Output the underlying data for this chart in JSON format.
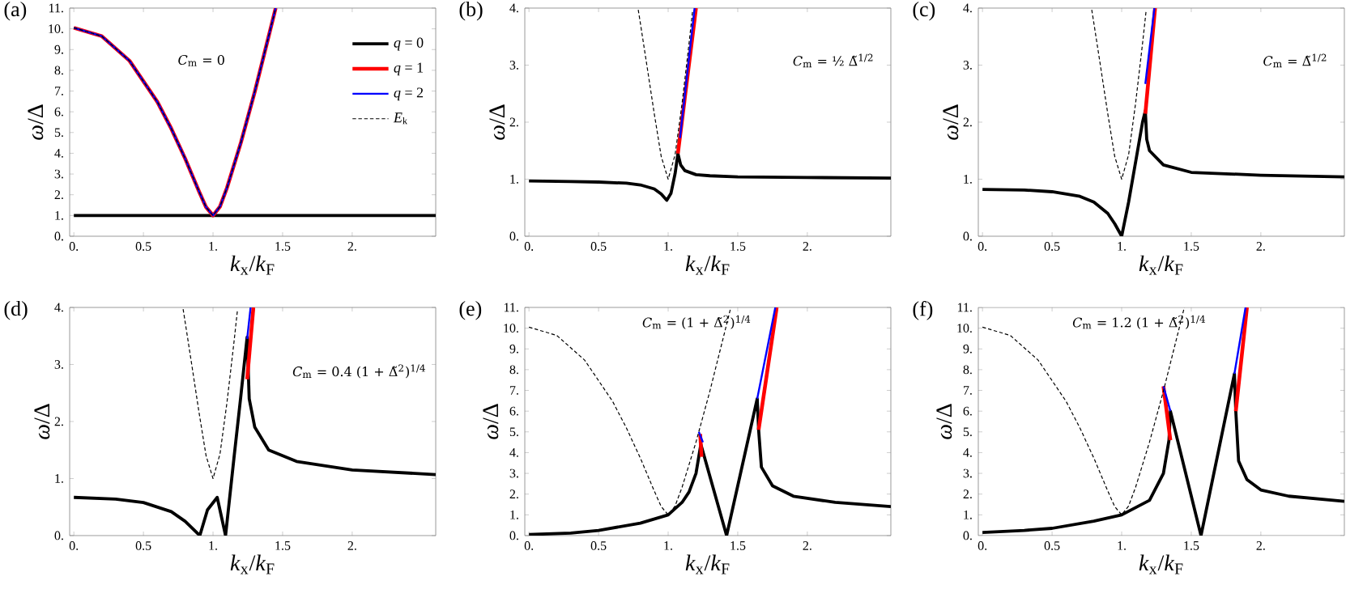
{
  "chart_data": [
    {
      "type": "line",
      "title": "(a)",
      "xlabel": "*k*$_{x}$/*k*$_{F}$",
      "ylabel": "*ω*/Δ",
      "annotations": [
        "*C*$_{m}$ = 0"
      ],
      "legend": "top right",
      "xlim": [
        -0.03,
        2.6
      ],
      "ylim": [
        0,
        11
      ],
      "xticks": [
        {
          "value": 0,
          "label": "0."
        },
        {
          "value": 0.5,
          "label": "0.5"
        },
        {
          "value": 1,
          "label": "1."
        },
        {
          "value": 1.5,
          "label": "1.5"
        },
        {
          "value": 2,
          "label": "2."
        }
      ],
      "yticks": [
        {
          "value": 0,
          "label": "0."
        },
        {
          "value": 1,
          "label": "1."
        },
        {
          "value": 2,
          "label": "2."
        },
        {
          "value": 3,
          "label": "3."
        },
        {
          "value": 4,
          "label": "4."
        },
        {
          "value": 5,
          "label": "5."
        },
        {
          "value": 6,
          "label": "6."
        },
        {
          "value": 7,
          "label": "7."
        },
        {
          "value": 8,
          "label": "8."
        },
        {
          "value": 9,
          "label": "9."
        },
        {
          "value": 10,
          "label": "10."
        },
        {
          "value": 11,
          "label": "11."
        }
      ],
      "series": [
        {
          "name": "*q* = 0",
          "color": "#000000",
          "x": [
            0,
            2.6
          ],
          "values": [
            1,
            1
          ]
        },
        {
          "name": "*q* = 1",
          "color": "#ff0000",
          "x": [
            0,
            0.2,
            0.4,
            0.6,
            0.7,
            0.8,
            0.9,
            0.95,
            1.0,
            1.05,
            1.1,
            1.2,
            1.3,
            1.4,
            1.45
          ],
          "values": [
            10.05,
            9.65,
            8.46,
            6.48,
            5.19,
            3.74,
            2.15,
            1.4,
            1.0,
            1.43,
            2.33,
            4.51,
            6.97,
            9.65,
            11.0
          ]
        },
        {
          "name": "*q* = 2",
          "color": "#0000ff",
          "x": [
            0,
            0.2,
            0.4,
            0.6,
            0.7,
            0.8,
            0.9,
            0.95,
            1.0,
            1.05,
            1.1,
            1.2,
            1.3,
            1.4,
            1.45
          ],
          "values": [
            10.05,
            9.65,
            8.46,
            6.48,
            5.19,
            3.74,
            2.15,
            1.4,
            1.0,
            1.43,
            2.33,
            4.51,
            6.97,
            9.65,
            11.0
          ]
        },
        {
          "name": "*E*$_{k}$",
          "color": "#000000",
          "line_style": "dashed",
          "x": [
            0,
            0.2,
            0.4,
            0.6,
            0.7,
            0.8,
            0.9,
            0.95,
            1.0,
            1.05,
            1.1,
            1.2,
            1.3,
            1.4,
            1.45
          ],
          "values": [
            10.05,
            9.65,
            8.46,
            6.48,
            5.19,
            3.74,
            2.15,
            1.4,
            1.0,
            1.43,
            2.33,
            4.51,
            6.97,
            9.65,
            11.0
          ]
        }
      ]
    },
    {
      "type": "line",
      "title": "(b)",
      "xlabel": "*k*$_{x}$/*k*$_{F}$",
      "ylabel": "*ω*/Δ",
      "annotations": [
        "*C*$_{m}$ = ½ Δ̃$^{1/2}$"
      ],
      "xlim": [
        -0.03,
        2.6
      ],
      "ylim": [
        0,
        4
      ],
      "xticks": [
        {
          "value": 0,
          "label": "0."
        },
        {
          "value": 0.5,
          "label": "0.5"
        },
        {
          "value": 1,
          "label": "1."
        },
        {
          "value": 1.5,
          "label": "1.5"
        },
        {
          "value": 2,
          "label": "2."
        }
      ],
      "yticks": [
        {
          "value": 0,
          "label": "0."
        },
        {
          "value": 1,
          "label": "1."
        },
        {
          "value": 2,
          "label": "2."
        },
        {
          "value": 3,
          "label": "3."
        },
        {
          "value": 4,
          "label": "4."
        }
      ],
      "series": [
        {
          "color": "#000000",
          "x": [
            0,
            0.3,
            0.5,
            0.7,
            0.8,
            0.9,
            0.95,
            0.99,
            1.02,
            1.05,
            1.07,
            1.09,
            1.12,
            1.2,
            1.3,
            1.5,
            2.0,
            2.6
          ],
          "values": [
            0.97,
            0.96,
            0.95,
            0.93,
            0.9,
            0.83,
            0.74,
            0.63,
            0.75,
            1.1,
            1.45,
            1.25,
            1.15,
            1.08,
            1.06,
            1.04,
            1.03,
            1.02
          ]
        },
        {
          "color": "#ff0000",
          "x": [
            1.07,
            1.2
          ],
          "values": [
            1.45,
            4.0
          ]
        },
        {
          "color": "#0000ff",
          "x": [
            1.085,
            1.19
          ],
          "values": [
            1.72,
            4.0
          ]
        },
        {
          "color": "#000000",
          "line_style": "dashed",
          "x": [
            0.785,
            0.8,
            0.85,
            0.9,
            0.95,
            1.0,
            1.05,
            1.1,
            1.15,
            1.175
          ],
          "values": [
            3.97,
            3.74,
            2.95,
            2.15,
            1.4,
            1.0,
            1.43,
            2.33,
            3.38,
            3.94
          ]
        }
      ]
    },
    {
      "type": "line",
      "title": "(c)",
      "xlabel": "*k*$_{x}$/*k*$_{F}$",
      "ylabel": "*ω*/Δ",
      "annotations": [
        "*C*$_{m}$ = Δ̃$^{1/2}$"
      ],
      "xlim": [
        -0.03,
        2.6
      ],
      "ylim": [
        0,
        4
      ],
      "xticks": [
        {
          "value": 0,
          "label": "0."
        },
        {
          "value": 0.5,
          "label": "0.5"
        },
        {
          "value": 1,
          "label": "1."
        },
        {
          "value": 1.5,
          "label": "1.5"
        },
        {
          "value": 2,
          "label": "2."
        }
      ],
      "yticks": [
        {
          "value": 0,
          "label": "0."
        },
        {
          "value": 1,
          "label": "1."
        },
        {
          "value": 2,
          "label": "2."
        },
        {
          "value": 3,
          "label": "3."
        },
        {
          "value": 4,
          "label": "4."
        }
      ],
      "series": [
        {
          "color": "#000000",
          "x": [
            0,
            0.3,
            0.5,
            0.7,
            0.8,
            0.9,
            0.95,
            1.0,
            1.05,
            1.1,
            1.15,
            1.17,
            1.18,
            1.2,
            1.3,
            1.5,
            2.0,
            2.6
          ],
          "values": [
            0.82,
            0.81,
            0.78,
            0.7,
            0.6,
            0.4,
            0.22,
            0.0,
            0.6,
            1.3,
            2.0,
            2.2,
            1.7,
            1.5,
            1.25,
            1.12,
            1.07,
            1.04
          ]
        },
        {
          "color": "#ff0000",
          "x": [
            1.17,
            1.24
          ],
          "values": [
            2.15,
            4.0
          ]
        },
        {
          "color": "#0000ff",
          "x": [
            1.17,
            1.235
          ],
          "values": [
            2.67,
            4.0
          ]
        },
        {
          "color": "#000000",
          "line_style": "dashed",
          "x": [
            0.785,
            0.8,
            0.85,
            0.9,
            0.95,
            1.0,
            1.05,
            1.1,
            1.15,
            1.175
          ],
          "values": [
            3.97,
            3.74,
            2.95,
            2.15,
            1.4,
            1.0,
            1.43,
            2.33,
            3.38,
            3.94
          ]
        }
      ]
    },
    {
      "type": "line",
      "title": "(d)",
      "xlabel": "*k*$_{x}$/*k*$_{F}$",
      "ylabel": "*ω*/Δ",
      "annotations": [
        "*C*$_{m}$ = 0.4 (1 + Δ̃$^{2}$)$^{1/4}$"
      ],
      "xlim": [
        -0.03,
        2.6
      ],
      "ylim": [
        0,
        4
      ],
      "xticks": [
        {
          "value": 0,
          "label": "0."
        },
        {
          "value": 0.5,
          "label": "0.5"
        },
        {
          "value": 1,
          "label": "1."
        },
        {
          "value": 1.5,
          "label": "1.5"
        },
        {
          "value": 2,
          "label": "2."
        }
      ],
      "yticks": [
        {
          "value": 0,
          "label": "0."
        },
        {
          "value": 1,
          "label": "1."
        },
        {
          "value": 2,
          "label": "2."
        },
        {
          "value": 3,
          "label": "3."
        },
        {
          "value": 4,
          "label": "4."
        }
      ],
      "series": [
        {
          "color": "#000000",
          "x": [
            0,
            0.3,
            0.5,
            0.7,
            0.8,
            0.905,
            0.96,
            1.03,
            1.09,
            1.15,
            1.2,
            1.245,
            1.26,
            1.3,
            1.4,
            1.6,
            2.0,
            2.6
          ],
          "values": [
            0.67,
            0.64,
            0.58,
            0.42,
            0.25,
            0.0,
            0.45,
            0.67,
            0.0,
            1.35,
            2.45,
            3.48,
            2.4,
            1.9,
            1.5,
            1.3,
            1.15,
            1.07
          ]
        },
        {
          "color": "#ff0000",
          "x": [
            1.245,
            1.29
          ],
          "values": [
            2.74,
            4.0
          ]
        },
        {
          "color": "#0000ff",
          "x": [
            1.245,
            1.27
          ],
          "values": [
            3.45,
            4.0
          ]
        },
        {
          "color": "#000000",
          "line_style": "dashed",
          "x": [
            0.785,
            0.8,
            0.85,
            0.9,
            0.95,
            1.0,
            1.05,
            1.1,
            1.15,
            1.175
          ],
          "values": [
            3.97,
            3.74,
            2.95,
            2.15,
            1.4,
            1.0,
            1.43,
            2.33,
            3.38,
            3.94
          ]
        }
      ]
    },
    {
      "type": "line",
      "title": "(e)",
      "xlabel": "*k*$_{x}$/*k*$_{F}$",
      "ylabel": "*ω*/Δ",
      "annotations": [
        "*C*$_{m}$ = (1 + Δ̃$^{2}$)$^{1/4}$"
      ],
      "xlim": [
        -0.03,
        2.6
      ],
      "ylim": [
        0,
        11
      ],
      "xticks": [
        {
          "value": 0,
          "label": "0."
        },
        {
          "value": 0.5,
          "label": "0.5"
        },
        {
          "value": 1,
          "label": "1."
        },
        {
          "value": 1.5,
          "label": "1.5"
        },
        {
          "value": 2,
          "label": "2."
        }
      ],
      "yticks": [
        {
          "value": 0,
          "label": "0."
        },
        {
          "value": 1,
          "label": "1."
        },
        {
          "value": 2,
          "label": "2."
        },
        {
          "value": 3,
          "label": "3."
        },
        {
          "value": 4,
          "label": "4."
        },
        {
          "value": 5,
          "label": "5."
        },
        {
          "value": 6,
          "label": "6."
        },
        {
          "value": 7,
          "label": "7."
        },
        {
          "value": 8,
          "label": "8."
        },
        {
          "value": 9,
          "label": "9."
        },
        {
          "value": 10,
          "label": "10."
        },
        {
          "value": 11,
          "label": "11."
        }
      ],
      "series": [
        {
          "color": "#000000",
          "x": [
            0,
            0.3,
            0.5,
            0.8,
            1.0,
            1.1,
            1.15,
            1.2,
            1.235,
            1.42,
            1.64,
            1.65,
            1.67,
            1.75,
            1.9,
            2.2,
            2.6
          ],
          "values": [
            0.05,
            0.12,
            0.25,
            0.6,
            1.0,
            1.6,
            2.1,
            3.0,
            4.4,
            0.0,
            6.6,
            5.1,
            3.3,
            2.4,
            1.9,
            1.6,
            1.4
          ]
        },
        {
          "color": "#ff0000",
          "x": [
            1.24,
            1.23,
            null,
            1.65,
            1.78
          ],
          "values": [
            3.8,
            4.9,
            null,
            5.1,
            11.0
          ]
        },
        {
          "color": "#0000ff",
          "x": [
            1.22,
            1.25,
            null,
            1.64,
            1.77
          ],
          "values": [
            5.0,
            4.5,
            null,
            6.6,
            11.0
          ]
        },
        {
          "color": "#000000",
          "line_style": "dashed",
          "x": [
            0,
            0.2,
            0.4,
            0.6,
            0.7,
            0.8,
            0.9,
            0.95,
            1.0,
            1.05,
            1.1,
            1.2,
            1.3,
            1.4,
            1.45
          ],
          "values": [
            10.05,
            9.65,
            8.46,
            6.48,
            5.19,
            3.74,
            2.15,
            1.4,
            1.0,
            1.43,
            2.33,
            4.51,
            6.97,
            9.65,
            11.0
          ]
        }
      ]
    },
    {
      "type": "line",
      "title": "(f)",
      "xlabel": "*k*$_{x}$/*k*$_{F}$",
      "ylabel": "*ω*/Δ",
      "annotations": [
        "*C*$_{m}$ = 1.2 (1 + Δ̃$^{2}$)$^{1/4}$"
      ],
      "xlim": [
        -0.03,
        2.6
      ],
      "ylim": [
        0,
        11
      ],
      "xticks": [
        {
          "value": 0,
          "label": "0."
        },
        {
          "value": 0.5,
          "label": "0.5"
        },
        {
          "value": 1,
          "label": "1."
        },
        {
          "value": 1.5,
          "label": "1.5"
        },
        {
          "value": 2,
          "label": "2."
        }
      ],
      "yticks": [
        {
          "value": 0,
          "label": "0."
        },
        {
          "value": 1,
          "label": "1."
        },
        {
          "value": 2,
          "label": "2."
        },
        {
          "value": 3,
          "label": "3."
        },
        {
          "value": 4,
          "label": "4."
        },
        {
          "value": 5,
          "label": "5."
        },
        {
          "value": 6,
          "label": "6."
        },
        {
          "value": 7,
          "label": "7."
        },
        {
          "value": 8,
          "label": "8."
        },
        {
          "value": 9,
          "label": "9."
        },
        {
          "value": 10,
          "label": "10."
        },
        {
          "value": 11,
          "label": "11."
        }
      ],
      "series": [
        {
          "color": "#000000",
          "x": [
            0,
            0.3,
            0.5,
            0.8,
            1.0,
            1.2,
            1.3,
            1.34,
            1.35,
            1.57,
            1.81,
            1.82,
            1.84,
            1.9,
            2.0,
            2.2,
            2.6
          ],
          "values": [
            0.15,
            0.25,
            0.35,
            0.7,
            1.0,
            1.7,
            3.0,
            4.6,
            6.0,
            0.0,
            7.8,
            6.0,
            3.6,
            2.7,
            2.2,
            1.9,
            1.65
          ]
        },
        {
          "color": "#ff0000",
          "x": [
            1.35,
            1.3,
            null,
            1.82,
            1.9
          ],
          "values": [
            4.6,
            7.2,
            null,
            6.0,
            11.0
          ]
        },
        {
          "color": "#0000ff",
          "x": [
            1.3,
            1.35,
            null,
            1.81,
            1.89
          ],
          "values": [
            7.2,
            6.0,
            null,
            7.8,
            11.0
          ]
        },
        {
          "color": "#000000",
          "line_style": "dashed",
          "x": [
            0,
            0.2,
            0.4,
            0.6,
            0.7,
            0.8,
            0.9,
            0.95,
            1.0,
            1.05,
            1.1,
            1.2,
            1.3,
            1.4,
            1.45
          ],
          "values": [
            10.05,
            9.65,
            8.46,
            6.48,
            5.19,
            3.74,
            2.15,
            1.4,
            1.0,
            1.43,
            2.33,
            4.51,
            6.97,
            9.65,
            11.0
          ]
        }
      ]
    }
  ]
}
